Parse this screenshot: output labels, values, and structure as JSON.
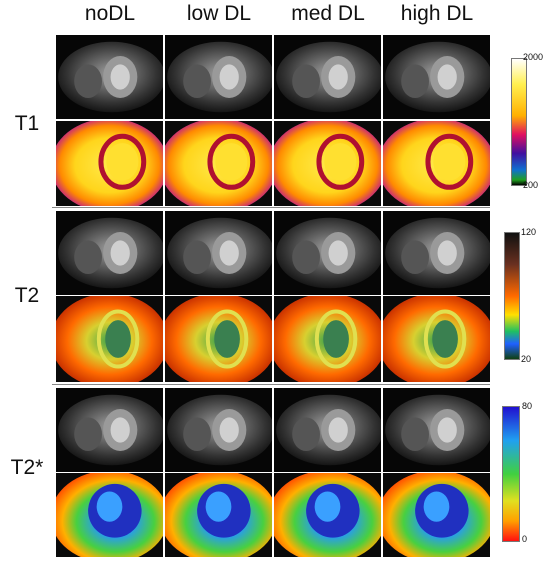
{
  "columns": [
    "noDL",
    "low DL",
    "med DL",
    "high DL"
  ],
  "rows": [
    {
      "label": "T1",
      "scale_max": "2000",
      "scale_min": "200",
      "map": "t1"
    },
    {
      "label": "T2",
      "scale_max": "120",
      "scale_min": "20",
      "map": "t2"
    },
    {
      "label": "T2*",
      "scale_max": "80",
      "scale_min": "0",
      "map": "t2s"
    }
  ]
}
